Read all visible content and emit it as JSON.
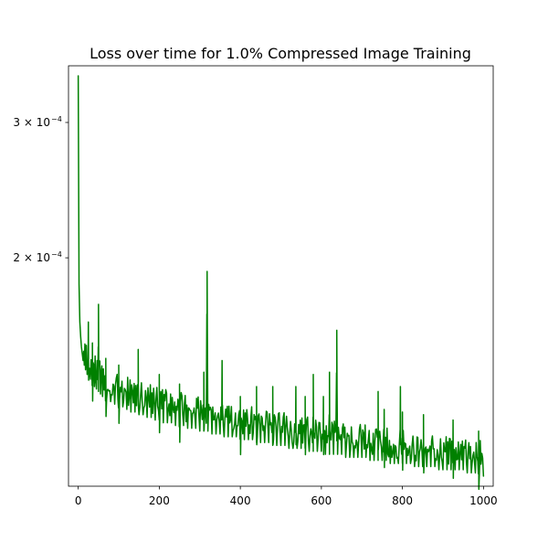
{
  "chart_data": {
    "type": "line",
    "title": "Loss over time for 1.0% Compressed Image Training",
    "xlabel": "",
    "ylabel": "",
    "y_scale": "log",
    "xlim": [
      -24,
      1024
    ],
    "ylim": [
      0.0001009,
      0.0003555
    ],
    "grid": false,
    "legend": "none",
    "x_ticks": [
      0,
      200,
      400,
      600,
      800,
      1000
    ],
    "x_tick_labels": [
      "0",
      "200",
      "400",
      "600",
      "800",
      "1000"
    ],
    "y_ticks": [
      0.0002,
      0.0003
    ],
    "y_tick_labels": [
      "2 × 10",
      "3 × 10"
    ],
    "y_tick_exponent": "−4",
    "series": [
      {
        "name": "",
        "color": "#008000",
        "x": [
          0,
          2,
          4,
          6,
          8,
          10,
          12,
          15,
          18,
          22,
          26,
          30,
          35,
          40,
          45,
          50,
          55,
          60,
          70,
          80,
          90,
          100,
          110,
          120,
          130,
          140,
          150,
          160,
          170,
          180,
          190,
          200,
          210,
          220,
          230,
          240,
          250,
          260,
          270,
          280,
          290,
          300,
          310,
          320,
          330,
          340,
          350,
          360,
          370,
          380,
          390,
          400,
          410,
          420,
          430,
          440,
          450,
          460,
          470,
          480,
          490,
          500,
          510,
          520,
          530,
          540,
          550,
          560,
          570,
          580,
          590,
          600,
          610,
          620,
          630,
          640,
          650,
          660,
          670,
          680,
          690,
          700,
          710,
          720,
          730,
          740,
          750,
          760,
          770,
          780,
          790,
          800,
          810,
          820,
          830,
          840,
          850,
          860,
          870,
          880,
          890,
          900,
          910,
          920,
          930,
          940,
          950,
          960,
          970,
          980,
          990,
          1000
        ],
        "y": [
          0.000345,
          0.000185,
          0.000165,
          0.000158,
          0.000153,
          0.00015,
          0.000147,
          0.000145,
          0.000143,
          0.000141,
          0.00014,
          0.000139,
          0.000137,
          0.000136,
          0.000135,
          0.000134,
          0.000133,
          0.000132,
          0.000131,
          0.00013,
          0.000129,
          0.000128,
          0.000128,
          0.000127,
          0.000126,
          0.000126,
          0.000125,
          0.000125,
          0.000124,
          0.000124,
          0.000123,
          0.000123,
          0.000122,
          0.000122,
          0.000122,
          0.000121,
          0.000121,
          0.000121,
          0.00012,
          0.00012,
          0.00012,
          0.000119,
          0.000119,
          0.000119,
          0.000118,
          0.000118,
          0.000118,
          0.000117,
          0.000117,
          0.000117,
          0.000117,
          0.000116,
          0.000116,
          0.000116,
          0.000116,
          0.000115,
          0.000115,
          0.000115,
          0.000115,
          0.000114,
          0.000114,
          0.000114,
          0.000114,
          0.000113,
          0.000113,
          0.000113,
          0.000113,
          0.000113,
          0.000112,
          0.000112,
          0.000112,
          0.000112,
          0.000111,
          0.000111,
          0.000111,
          0.000111,
          0.000111,
          0.00011,
          0.00011,
          0.00011,
          0.00011,
          0.00011,
          0.00011,
          0.000109,
          0.000109,
          0.000109,
          0.000109,
          0.000109,
          0.000108,
          0.000108,
          0.000108,
          0.000108,
          0.000108,
          0.000108,
          0.000107,
          0.000107,
          0.000107,
          0.000107,
          0.000107,
          0.000107,
          0.000106,
          0.000106,
          0.000106,
          0.000106,
          0.000106,
          0.000106,
          0.000106,
          0.000105,
          0.000105,
          0.000105,
          0.000105,
          0.000104
        ]
      }
    ],
    "spikes": [
      {
        "x": 25,
        "y": 0.000165
      },
      {
        "x": 35,
        "y": 0.000155
      },
      {
        "x": 50,
        "y": 0.000174
      },
      {
        "x": 68,
        "y": 0.000148
      },
      {
        "x": 100,
        "y": 0.000145
      },
      {
        "x": 148,
        "y": 0.000152
      },
      {
        "x": 200,
        "y": 0.000141
      },
      {
        "x": 250,
        "y": 0.000137
      },
      {
        "x": 310,
        "y": 0.000142
      },
      {
        "x": 318,
        "y": 0.000192
      },
      {
        "x": 355,
        "y": 0.000147
      },
      {
        "x": 400,
        "y": 0.000132
      },
      {
        "x": 440,
        "y": 0.000136
      },
      {
        "x": 480,
        "y": 0.000136
      },
      {
        "x": 537,
        "y": 0.000136
      },
      {
        "x": 560,
        "y": 0.000132
      },
      {
        "x": 580,
        "y": 0.000141
      },
      {
        "x": 605,
        "y": 0.000132
      },
      {
        "x": 620,
        "y": 0.000142
      },
      {
        "x": 638,
        "y": 0.000161
      },
      {
        "x": 740,
        "y": 0.000134
      },
      {
        "x": 755,
        "y": 0.000127
      },
      {
        "x": 795,
        "y": 0.000136
      },
      {
        "x": 800,
        "y": 0.000126
      },
      {
        "x": 852,
        "y": 0.000125
      },
      {
        "x": 925,
        "y": 0.000123
      },
      {
        "x": 988,
        "y": 0.000119
      }
    ]
  }
}
